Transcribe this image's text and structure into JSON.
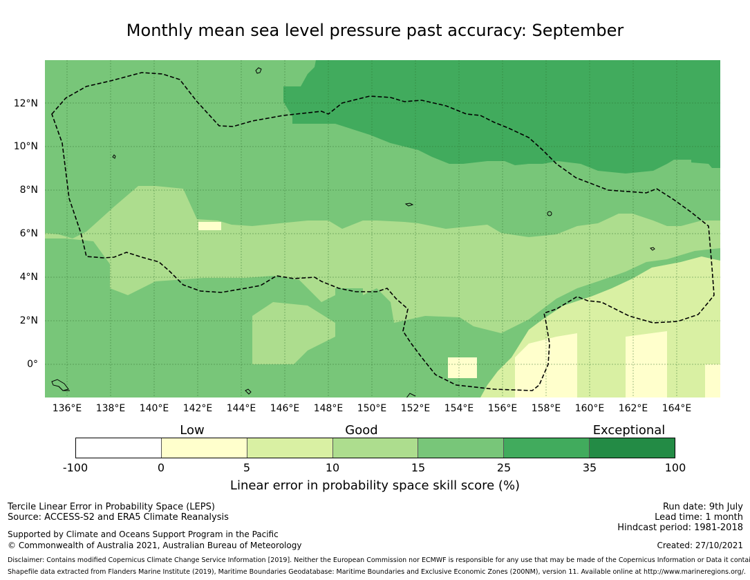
{
  "title": "Monthly mean sea level pressure past accuracy: September",
  "map": {
    "lon_ticks": [
      "136°E",
      "138°E",
      "140°E",
      "142°E",
      "144°E",
      "146°E",
      "148°E",
      "150°E",
      "152°E",
      "154°E",
      "156°E",
      "158°E",
      "160°E",
      "162°E",
      "164°E"
    ],
    "lon_values": [
      136,
      138,
      140,
      142,
      144,
      146,
      148,
      150,
      152,
      154,
      156,
      158,
      160,
      162,
      164
    ],
    "lat_ticks": [
      "12°N",
      "10°N",
      "8°N",
      "6°N",
      "4°N",
      "2°N",
      "0°"
    ],
    "lat_values": [
      12,
      10,
      8,
      6,
      4,
      2,
      0
    ],
    "extent": {
      "lon_min": 135.0,
      "lon_max": 166.0,
      "lat_min": -1.5,
      "lat_max": 14.0
    },
    "zone_colors": {
      "exceptional_dark": "#238b45",
      "very_good": "#41ab5d",
      "good_high": "#78c679",
      "good_mid": "#addd8e",
      "good_low": "#d9f0a3",
      "low": "#ffffcc"
    },
    "eez_boundary_style": "dashed"
  },
  "colorbar": {
    "categories": [
      {
        "label": "Low",
        "at": "5"
      },
      {
        "label": "Good",
        "at": "15"
      },
      {
        "label": "Exceptional",
        "at": "35"
      }
    ],
    "ticks": [
      "-100",
      "0",
      "5",
      "10",
      "15",
      "25",
      "35",
      "100"
    ],
    "colors": [
      "#ffffff",
      "#ffffcc",
      "#d9f0a3",
      "#addd8e",
      "#78c679",
      "#41ab5d",
      "#238b45"
    ],
    "label": "Linear error in probability space skill score (%)"
  },
  "footer": {
    "method": "Tercile Linear Error in Probability Space (LEPS)",
    "source": "Source: ACCESS-S2 and ERA5 Climate Reanalysis",
    "support": "Supported by Climate and Oceans Support Program in the Pacific",
    "copyright": "© Commonwealth of Australia 2021, Australian Bureau of Meteorology",
    "run_date": "Run date: 9th July",
    "lead_time": "Lead time: 1 month",
    "hindcast": "Hindcast period: 1981-2018",
    "created": "Created: 27/10/2021",
    "disclaimer": "Disclaimer: Contains modified Copernicus Climate Change Service Information [2019]. Neither the European Commission nor ECMWF is responsible for any use that may be made of the Copernicus Information or Data it contains.",
    "shapefile": "Shapefile data extracted from Flanders Marine Institute (2019), Maritime Boundaries Geodatabase: Maritime Boundaries and Exclusive Economic Zones (200NM), version 11. Available online at http://www.marineregions.org/."
  }
}
